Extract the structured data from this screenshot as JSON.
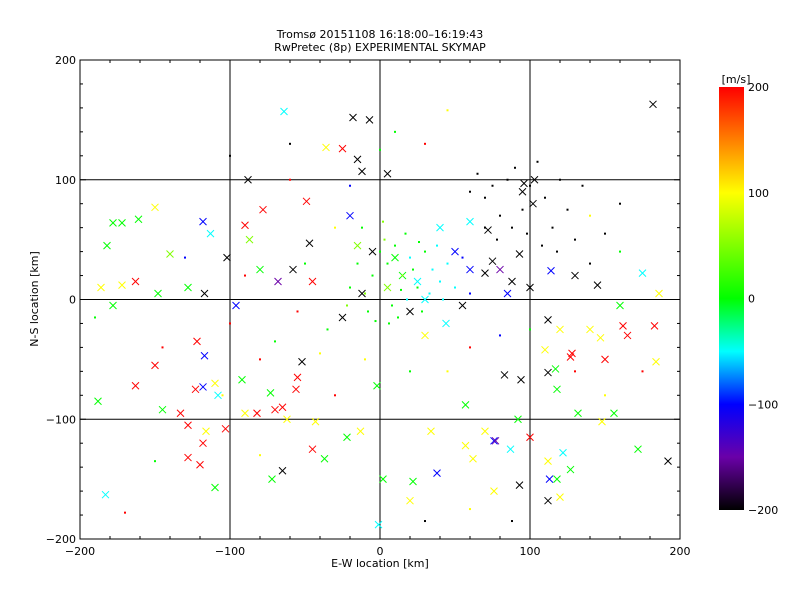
{
  "chart_data": {
    "type": "scatter",
    "title_line1": "Tromsø 20151108 16:18:00–16:19:43",
    "title_line2": "RwPretec (8p) EXPERIMENTAL SKYMAP",
    "xlabel": "E-W location [km]",
    "ylabel": "N-S location [km]",
    "xlim": [
      -200,
      200
    ],
    "ylim": [
      -200,
      200
    ],
    "xticks": [
      "−200",
      "−100",
      "0",
      "100",
      "200"
    ],
    "yticks": [
      "−200",
      "−100",
      "0",
      "100",
      "200"
    ],
    "xtick_values": [
      -200,
      -100,
      0,
      100,
      200
    ],
    "ytick_values": [
      -200,
      -100,
      0,
      100,
      200
    ],
    "grid": true,
    "colorbar": {
      "label": "[m/s]",
      "range": [
        -200,
        200
      ],
      "ticks": [
        "200",
        "100",
        "0",
        "−100",
        "−200"
      ],
      "tick_values": [
        200,
        100,
        0,
        -100,
        -200
      ],
      "colormap": [
        {
          "v": 200,
          "color": "#ff0000"
        },
        {
          "v": 100,
          "color": "#ffff00"
        },
        {
          "v": 0,
          "color": "#00ff00"
        },
        {
          "v": -50,
          "color": "#00ffff"
        },
        {
          "v": -100,
          "color": "#0000ff"
        },
        {
          "v": -150,
          "color": "#6a00a8"
        },
        {
          "v": -200,
          "color": "#000000"
        }
      ]
    },
    "point_fields": [
      "x_km",
      "y_km",
      "velocity_ms",
      "marker"
    ],
    "points": [
      [
        182,
        163,
        -200,
        "x"
      ],
      [
        -18,
        152,
        -200,
        "x"
      ],
      [
        -7,
        150,
        -200,
        "x"
      ],
      [
        -15,
        117,
        -200,
        "x"
      ],
      [
        -25,
        126,
        200,
        "x"
      ],
      [
        -36,
        127,
        100,
        "x"
      ],
      [
        -64,
        157,
        -50,
        "x"
      ],
      [
        -88,
        100,
        -200,
        "x"
      ],
      [
        -12,
        107,
        -200,
        "x"
      ],
      [
        5,
        105,
        -200,
        "x"
      ],
      [
        -118,
        65,
        -100,
        "x"
      ],
      [
        -150,
        77,
        100,
        "x"
      ],
      [
        -178,
        64,
        0,
        "x"
      ],
      [
        -172,
        64,
        0,
        "x"
      ],
      [
        -182,
        45,
        0,
        "x"
      ],
      [
        -161,
        67,
        0,
        "x"
      ],
      [
        -140,
        38,
        50,
        "x"
      ],
      [
        -113,
        55,
        -50,
        "x"
      ],
      [
        -102,
        35,
        -200,
        "x"
      ],
      [
        -90,
        62,
        200,
        "x"
      ],
      [
        -87,
        50,
        50,
        "x"
      ],
      [
        -78,
        75,
        200,
        "x"
      ],
      [
        -49,
        82,
        200,
        "x"
      ],
      [
        -47,
        47,
        -200,
        "x"
      ],
      [
        -58,
        25,
        -200,
        "x"
      ],
      [
        -45,
        15,
        200,
        "x"
      ],
      [
        -68,
        15,
        -150,
        "x"
      ],
      [
        -80,
        25,
        0,
        "x"
      ],
      [
        -96,
        -5,
        -100,
        "x"
      ],
      [
        -117,
        5,
        -200,
        "x"
      ],
      [
        -128,
        10,
        0,
        "x"
      ],
      [
        -148,
        5,
        0,
        "x"
      ],
      [
        -163,
        15,
        200,
        "x"
      ],
      [
        -172,
        12,
        100,
        "x"
      ],
      [
        -186,
        10,
        100,
        "x"
      ],
      [
        -178,
        -5,
        0,
        "x"
      ],
      [
        -150,
        -55,
        200,
        "x"
      ],
      [
        -163,
        -72,
        200,
        "x"
      ],
      [
        -122,
        -35,
        200,
        "x"
      ],
      [
        -117,
        -47,
        -100,
        "x"
      ],
      [
        -118,
        -73,
        -100,
        "x"
      ],
      [
        -123,
        -75,
        200,
        "x"
      ],
      [
        -108,
        -80,
        -50,
        "x"
      ],
      [
        -110,
        -70,
        100,
        "x"
      ],
      [
        -145,
        -92,
        0,
        "x"
      ],
      [
        -133,
        -95,
        200,
        "x"
      ],
      [
        -128,
        -105,
        200,
        "x"
      ],
      [
        -116,
        -110,
        100,
        "x"
      ],
      [
        -103,
        -108,
        200,
        "x"
      ],
      [
        -118,
        -120,
        200,
        "x"
      ],
      [
        -128,
        -132,
        200,
        "x"
      ],
      [
        -188,
        -85,
        0,
        "x"
      ],
      [
        -183,
        -163,
        -50,
        "x"
      ],
      [
        -120,
        -138,
        200,
        "x"
      ],
      [
        -110,
        -157,
        0,
        "x"
      ],
      [
        -92,
        -67,
        0,
        "x"
      ],
      [
        -90,
        -95,
        100,
        "x"
      ],
      [
        -82,
        -95,
        200,
        "x"
      ],
      [
        -73,
        -78,
        0,
        "x"
      ],
      [
        -70,
        -92,
        200,
        "x"
      ],
      [
        -65,
        -90,
        200,
        "x"
      ],
      [
        -52,
        -52,
        -200,
        "x"
      ],
      [
        -55,
        -65,
        200,
        "x"
      ],
      [
        -56,
        -75,
        200,
        "x"
      ],
      [
        -62,
        -100,
        100,
        "x"
      ],
      [
        -43,
        -102,
        100,
        "x"
      ],
      [
        -65,
        -143,
        -200,
        "x"
      ],
      [
        -72,
        -150,
        0,
        "x"
      ],
      [
        -45,
        -125,
        200,
        "x"
      ],
      [
        -37,
        -133,
        0,
        "x"
      ],
      [
        -22,
        -115,
        0,
        "x"
      ],
      [
        -13,
        -110,
        100,
        "x"
      ],
      [
        -2,
        -72,
        0,
        "x"
      ],
      [
        2,
        -150,
        0,
        "x"
      ],
      [
        -1,
        -188,
        -50,
        "x"
      ],
      [
        20,
        -168,
        100,
        "x"
      ],
      [
        22,
        -152,
        0,
        "x"
      ],
      [
        34,
        -110,
        100,
        "x"
      ],
      [
        38,
        -145,
        -100,
        "x"
      ],
      [
        57,
        -88,
        0,
        "x"
      ],
      [
        57,
        -122,
        100,
        "x"
      ],
      [
        62,
        -133,
        100,
        "x"
      ],
      [
        70,
        -110,
        100,
        "x"
      ],
      [
        76,
        -118,
        -100,
        "x"
      ],
      [
        77,
        -118,
        -150,
        "x"
      ],
      [
        87,
        -125,
        -50,
        "x"
      ],
      [
        92,
        -100,
        0,
        "x"
      ],
      [
        100,
        -115,
        200,
        "x"
      ],
      [
        112,
        -135,
        100,
        "x"
      ],
      [
        113,
        -150,
        -100,
        "x"
      ],
      [
        112,
        -168,
        -200,
        "x"
      ],
      [
        120,
        -165,
        100,
        "x"
      ],
      [
        122,
        -128,
        -50,
        "x"
      ],
      [
        118,
        -150,
        0,
        "x"
      ],
      [
        127,
        -142,
        0,
        "x"
      ],
      [
        93,
        -155,
        -200,
        "x"
      ],
      [
        76,
        -160,
        100,
        "x"
      ],
      [
        132,
        -95,
        0,
        "x"
      ],
      [
        148,
        -102,
        100,
        "x"
      ],
      [
        156,
        -95,
        0,
        "x"
      ],
      [
        172,
        -125,
        0,
        "x"
      ],
      [
        192,
        -135,
        -200,
        "x"
      ],
      [
        184,
        -52,
        100,
        "x"
      ],
      [
        183,
        -22,
        200,
        "x"
      ],
      [
        162,
        -22,
        200,
        "x"
      ],
      [
        165,
        -30,
        200,
        "x"
      ],
      [
        150,
        -50,
        200,
        "x"
      ],
      [
        128,
        -45,
        200,
        "x"
      ],
      [
        127,
        -48,
        200,
        "x"
      ],
      [
        117,
        -58,
        0,
        "x"
      ],
      [
        112,
        -61,
        -200,
        "x"
      ],
      [
        118,
        -75,
        0,
        "x"
      ],
      [
        83,
        -63,
        -200,
        "x"
      ],
      [
        94,
        -67,
        -200,
        "x"
      ],
      [
        110,
        -42,
        100,
        "x"
      ],
      [
        120,
        -25,
        100,
        "x"
      ],
      [
        112,
        -17,
        -200,
        "x"
      ],
      [
        140,
        -25,
        100,
        "x"
      ],
      [
        147,
        -32,
        100,
        "x"
      ],
      [
        160,
        -5,
        0,
        "x"
      ],
      [
        175,
        22,
        -50,
        "x"
      ],
      [
        186,
        5,
        100,
        "x"
      ],
      [
        145,
        12,
        -200,
        "x"
      ],
      [
        130,
        20,
        -200,
        "x"
      ],
      [
        114,
        24,
        -100,
        "x"
      ],
      [
        100,
        10,
        -200,
        "x"
      ],
      [
        88,
        15,
        -200,
        "x"
      ],
      [
        80,
        25,
        -150,
        "x"
      ],
      [
        70,
        22,
        -200,
        "x"
      ],
      [
        75,
        32,
        -200,
        "x"
      ],
      [
        93,
        38,
        -200,
        "x"
      ],
      [
        96,
        97,
        -200,
        "x"
      ],
      [
        103,
        100,
        -200,
        "x"
      ],
      [
        95,
        90,
        -200,
        "x"
      ],
      [
        102,
        80,
        -200,
        "x"
      ],
      [
        72,
        58,
        -200,
        "x"
      ],
      [
        60,
        65,
        -50,
        "x"
      ],
      [
        40,
        60,
        -50,
        "x"
      ],
      [
        20,
        -10,
        -200,
        "x"
      ],
      [
        -12,
        5,
        -200,
        "x"
      ],
      [
        -25,
        -15,
        -200,
        "x"
      ],
      [
        -5,
        40,
        -200,
        "x"
      ],
      [
        30,
        0,
        -50,
        "x"
      ],
      [
        50,
        40,
        -100,
        "x"
      ],
      [
        60,
        25,
        -100,
        "x"
      ],
      [
        85,
        5,
        -100,
        "x"
      ],
      [
        55,
        -5,
        -200,
        "x"
      ],
      [
        30,
        -30,
        100,
        "x"
      ],
      [
        44,
        -20,
        -50,
        "x"
      ],
      [
        -20,
        70,
        -100,
        "x"
      ],
      [
        -15,
        45,
        50,
        "x"
      ],
      [
        10,
        35,
        0,
        "x"
      ],
      [
        15,
        20,
        0,
        "x"
      ],
      [
        25,
        15,
        -50,
        "x"
      ],
      [
        5,
        10,
        50,
        "x"
      ],
      [
        0,
        40,
        0,
        "d"
      ],
      [
        5,
        30,
        0,
        "d"
      ],
      [
        10,
        45,
        0,
        "d"
      ],
      [
        15,
        20,
        50,
        "d"
      ],
      [
        20,
        35,
        -50,
        "d"
      ],
      [
        25,
        10,
        0,
        "d"
      ],
      [
        30,
        40,
        0,
        "d"
      ],
      [
        35,
        25,
        -50,
        "d"
      ],
      [
        -5,
        20,
        0,
        "d"
      ],
      [
        -10,
        5,
        50,
        "d"
      ],
      [
        -15,
        30,
        0,
        "d"
      ],
      [
        -20,
        10,
        0,
        "d"
      ],
      [
        8,
        -5,
        0,
        "d"
      ],
      [
        12,
        -15,
        0,
        "d"
      ],
      [
        18,
        0,
        -50,
        "d"
      ],
      [
        22,
        25,
        0,
        "d"
      ],
      [
        28,
        -10,
        0,
        "d"
      ],
      [
        33,
        5,
        -50,
        "d"
      ],
      [
        40,
        15,
        -50,
        "d"
      ],
      [
        45,
        30,
        -50,
        "d"
      ],
      [
        50,
        10,
        -50,
        "d"
      ],
      [
        55,
        35,
        -100,
        "d"
      ],
      [
        60,
        5,
        -100,
        "d"
      ],
      [
        3,
        50,
        50,
        "d"
      ],
      [
        -8,
        -10,
        0,
        "d"
      ],
      [
        -22,
        -5,
        50,
        "d"
      ],
      [
        14,
        8,
        0,
        "d"
      ],
      [
        26,
        48,
        0,
        "d"
      ],
      [
        38,
        45,
        -50,
        "d"
      ],
      [
        42,
        0,
        -50,
        "d"
      ],
      [
        6,
        -20,
        0,
        "d"
      ],
      [
        -3,
        -18,
        0,
        "d"
      ],
      [
        17,
        55,
        0,
        "d"
      ],
      [
        -12,
        60,
        0,
        "d"
      ],
      [
        2,
        65,
        50,
        "d"
      ],
      [
        60,
        90,
        -200,
        "d"
      ],
      [
        65,
        105,
        -200,
        "d"
      ],
      [
        70,
        85,
        -200,
        "d"
      ],
      [
        75,
        95,
        -200,
        "d"
      ],
      [
        80,
        70,
        -200,
        "d"
      ],
      [
        85,
        100,
        -200,
        "d"
      ],
      [
        90,
        110,
        -200,
        "d"
      ],
      [
        95,
        75,
        -200,
        "d"
      ],
      [
        100,
        95,
        -200,
        "d"
      ],
      [
        105,
        115,
        -200,
        "d"
      ],
      [
        110,
        85,
        -200,
        "d"
      ],
      [
        115,
        60,
        -200,
        "d"
      ],
      [
        120,
        100,
        -200,
        "d"
      ],
      [
        125,
        75,
        -200,
        "d"
      ],
      [
        130,
        50,
        -200,
        "d"
      ],
      [
        70,
        60,
        -200,
        "d"
      ],
      [
        78,
        50,
        -200,
        "d"
      ],
      [
        88,
        60,
        -200,
        "d"
      ],
      [
        98,
        55,
        -200,
        "d"
      ],
      [
        108,
        45,
        -200,
        "d"
      ],
      [
        118,
        40,
        -200,
        "d"
      ],
      [
        140,
        30,
        -200,
        "d"
      ],
      [
        150,
        55,
        -200,
        "d"
      ],
      [
        160,
        80,
        -200,
        "d"
      ],
      [
        135,
        95,
        -200,
        "d"
      ],
      [
        -100,
        120,
        -200,
        "d"
      ],
      [
        -60,
        130,
        -200,
        "d"
      ],
      [
        -60,
        100,
        200,
        "d"
      ],
      [
        -20,
        95,
        -100,
        "d"
      ],
      [
        0,
        125,
        0,
        "d"
      ],
      [
        10,
        140,
        0,
        "d"
      ],
      [
        30,
        130,
        200,
        "d"
      ],
      [
        45,
        158,
        100,
        "d"
      ],
      [
        -30,
        60,
        100,
        "d"
      ],
      [
        -50,
        30,
        0,
        "d"
      ],
      [
        -90,
        20,
        200,
        "d"
      ],
      [
        -130,
        35,
        -100,
        "d"
      ],
      [
        -190,
        -15,
        0,
        "d"
      ],
      [
        -145,
        -40,
        200,
        "d"
      ],
      [
        -100,
        -20,
        200,
        "d"
      ],
      [
        -70,
        -35,
        0,
        "d"
      ],
      [
        -40,
        -45,
        100,
        "d"
      ],
      [
        -30,
        -80,
        200,
        "d"
      ],
      [
        -10,
        -50,
        100,
        "d"
      ],
      [
        20,
        -60,
        0,
        "d"
      ],
      [
        45,
        -60,
        100,
        "d"
      ],
      [
        60,
        -40,
        200,
        "d"
      ],
      [
        80,
        -30,
        -100,
        "d"
      ],
      [
        100,
        -25,
        0,
        "d"
      ],
      [
        130,
        -60,
        200,
        "d"
      ],
      [
        150,
        -80,
        100,
        "d"
      ],
      [
        175,
        -60,
        200,
        "d"
      ],
      [
        160,
        40,
        0,
        "d"
      ],
      [
        140,
        70,
        100,
        "d"
      ],
      [
        -150,
        -135,
        0,
        "d"
      ],
      [
        -80,
        -130,
        100,
        "d"
      ],
      [
        30,
        -185,
        -200,
        "d"
      ],
      [
        60,
        -175,
        100,
        "d"
      ],
      [
        88,
        -185,
        -200,
        "d"
      ],
      [
        -170,
        -178,
        200,
        "d"
      ],
      [
        -105,
        -80,
        100,
        "d"
      ],
      [
        -55,
        -10,
        200,
        "d"
      ],
      [
        -35,
        -25,
        0,
        "d"
      ],
      [
        -80,
        -50,
        200,
        "d"
      ]
    ]
  }
}
